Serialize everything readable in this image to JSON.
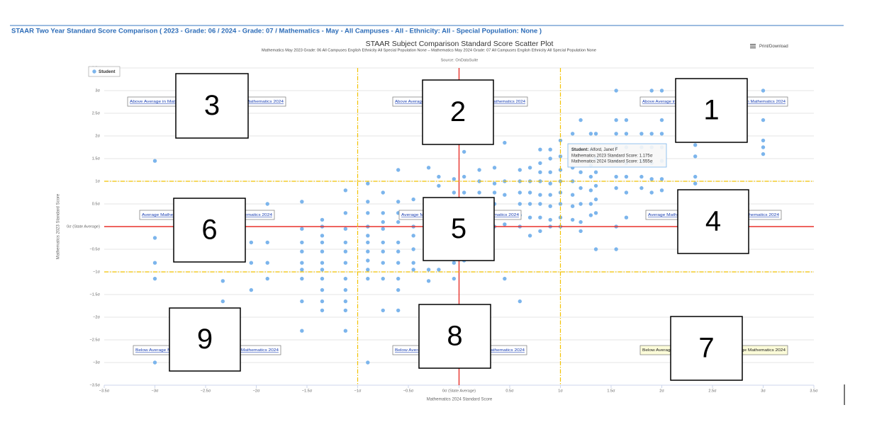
{
  "header": {
    "title": "STAAR Two Year Standard Score Comparison ( 2023 - Grade: 06 / 2024 - Grade: 07 / Mathematics - May - All Campuses - All - Ethnicity: All - Special Population: None )",
    "print_download": "Print/Download"
  },
  "chart_data": {
    "type": "scatter",
    "title": "STAAR Subject Comparison Standard Score Scatter Plot",
    "subtitle": "Mathematics May 2023 Grade: 06 All Campuses English Ethnicity All Special Population None – Mathematics May 2024 Grade: 07 All Campuses English Ethnicity All Special Population None",
    "source": "Source: OnDataSuite",
    "x_label": "Mathematics 2024 Standard Score",
    "y_label": "Mathematics 2023 Standard Score",
    "xlim": [
      -3.5,
      3.5
    ],
    "ylim": [
      -3.5,
      3.5
    ],
    "xticks": [
      {
        "value": -3.5,
        "label": "−3.5σ"
      },
      {
        "value": -3,
        "label": "−3σ"
      },
      {
        "value": -2.5,
        "label": "−2.5σ"
      },
      {
        "value": -2,
        "label": "−2σ"
      },
      {
        "value": -1.5,
        "label": "−1.5σ"
      },
      {
        "value": -1,
        "label": "−1σ"
      },
      {
        "value": -0.5,
        "label": "−0.5σ"
      },
      {
        "value": 0,
        "label": "0σ (State Average)"
      },
      {
        "value": 0.5,
        "label": "0.5σ"
      },
      {
        "value": 1,
        "label": "1σ"
      },
      {
        "value": 1.5,
        "label": "1.5σ"
      },
      {
        "value": 2,
        "label": "2σ"
      },
      {
        "value": 2.5,
        "label": "2.5σ"
      },
      {
        "value": 3,
        "label": "3σ"
      },
      {
        "value": 3.5,
        "label": "3.5σ"
      }
    ],
    "yticks": [
      {
        "value": -3.5,
        "label": "−3.5σ"
      },
      {
        "value": -3,
        "label": "−3σ"
      },
      {
        "value": -2.5,
        "label": "−2.5σ"
      },
      {
        "value": -2,
        "label": "−2σ"
      },
      {
        "value": -1.5,
        "label": "−1.5σ"
      },
      {
        "value": -1,
        "label": "−1σ"
      },
      {
        "value": -0.5,
        "label": "−0.5σ"
      },
      {
        "value": 0,
        "label": "0σ (State Average)"
      },
      {
        "value": 0.5,
        "label": "0.5σ"
      },
      {
        "value": 1,
        "label": "1σ"
      },
      {
        "value": 1.5,
        "label": "1.5σ"
      },
      {
        "value": 2,
        "label": "2σ"
      },
      {
        "value": 2.5,
        "label": "2.5σ"
      },
      {
        "value": 3,
        "label": "3σ"
      },
      {
        "value": 3.5,
        "label": "3.5σ"
      }
    ],
    "grid": true,
    "reference_lines": [
      {
        "axis": "x",
        "value": 0,
        "color": "#e8302b",
        "dashed": false
      },
      {
        "axis": "y",
        "value": 0,
        "color": "#e8302b",
        "dashed": false
      },
      {
        "axis": "x",
        "value": -1,
        "color": "#f2c200",
        "dashed": true
      },
      {
        "axis": "x",
        "value": 1,
        "color": "#f2c200",
        "dashed": true
      },
      {
        "axis": "y",
        "value": -1,
        "color": "#f2c200",
        "dashed": true
      },
      {
        "axis": "y",
        "value": 1,
        "color": "#f2c200",
        "dashed": true
      }
    ],
    "legend": "top-left",
    "series": [
      {
        "name": "Student",
        "color": "#7cb5ec",
        "x": [
          -3,
          -3,
          -3,
          -3,
          -3,
          -2.33,
          -2.33,
          -2.05,
          -2.05,
          -2.05,
          -1.89,
          -1.89,
          -1.89,
          -1.89,
          -1.55,
          -1.55,
          -1.55,
          -1.55,
          -1.55,
          -1.55,
          -1.55,
          -1.55,
          -1.55,
          -1.35,
          -1.35,
          -1.35,
          -1.35,
          -1.35,
          -1.35,
          -1.35,
          -1.35,
          -1.35,
          -1.35,
          -1.35,
          -1.12,
          -1.12,
          -1.12,
          -1.12,
          -1.12,
          -1.12,
          -1.12,
          -1.12,
          -1.12,
          -1.12,
          -1.12,
          -0.9,
          -0.9,
          -0.9,
          -0.9,
          -0.9,
          -0.9,
          -0.9,
          -0.9,
          -0.9,
          -0.9,
          -0.9,
          -0.75,
          -0.75,
          -0.75,
          -0.75,
          -0.75,
          -0.75,
          -0.75,
          -0.75,
          -0.75,
          -0.6,
          -0.6,
          -0.6,
          -0.6,
          -0.6,
          -0.6,
          -0.6,
          -0.6,
          -0.6,
          -0.6,
          -0.45,
          -0.45,
          -0.45,
          -0.45,
          -0.45,
          -0.45,
          -0.45,
          -0.3,
          -0.3,
          -0.3,
          -0.3,
          -0.3,
          -0.3,
          -0.3,
          -0.3,
          -0.2,
          -0.2,
          -0.2,
          -0.2,
          -0.2,
          -0.2,
          -0.2,
          -0.2,
          -0.05,
          -0.05,
          -0.05,
          -0.05,
          -0.05,
          -0.05,
          -0.05,
          -0.05,
          0.05,
          0.05,
          0.05,
          0.05,
          0.05,
          0.05,
          0.05,
          0.05,
          0.2,
          0.2,
          0.2,
          0.2,
          0.2,
          0.2,
          0.2,
          0.35,
          0.35,
          0.35,
          0.35,
          0.35,
          0.35,
          0.45,
          0.45,
          0.45,
          0.45,
          0.45,
          0.45,
          0.6,
          0.6,
          0.6,
          0.6,
          0.6,
          0.6,
          0.6,
          0.7,
          0.7,
          0.7,
          0.7,
          0.7,
          0.7,
          0.8,
          0.8,
          0.8,
          0.8,
          0.8,
          0.8,
          0.8,
          0.8,
          0.9,
          0.9,
          0.9,
          0.9,
          0.9,
          0.9,
          0.9,
          0.9,
          1,
          1,
          1,
          1,
          1,
          1,
          1,
          1,
          1.12,
          1.12,
          1.12,
          1.12,
          1.12,
          1.12,
          1.12,
          1.2,
          1.2,
          1.2,
          1.2,
          1.2,
          1.2,
          1.2,
          1.3,
          1.3,
          1.3,
          1.3,
          1.3,
          1.3,
          1.3,
          1.35,
          1.35,
          1.35,
          1.35,
          1.35,
          1.35,
          1.35,
          1.55,
          1.55,
          1.55,
          1.55,
          1.55,
          1.55,
          1.55,
          1.55,
          1.55,
          1.65,
          1.65,
          1.65,
          1.65,
          1.65,
          1.65,
          1.65,
          1.8,
          1.8,
          1.8,
          1.8,
          1.8,
          1.9,
          1.9,
          1.9,
          1.9,
          1.9,
          1.9,
          2,
          2,
          2,
          2,
          2,
          2,
          2,
          2.33,
          2.33,
          2.33,
          2.33,
          3,
          3,
          3,
          3,
          3
        ],
        "values": [
          1.45,
          -0.25,
          -0.8,
          -1.15,
          -3,
          -1.2,
          -1.65,
          -0.35,
          -0.8,
          -1.4,
          0.5,
          -0.35,
          -0.8,
          -1.15,
          0.55,
          -0.05,
          -0.35,
          -0.55,
          -0.8,
          -0.95,
          -1.15,
          -1.65,
          -2.3,
          0.15,
          0,
          -0.2,
          -0.35,
          -0.55,
          -0.8,
          -0.95,
          -1.15,
          -1.4,
          -1.65,
          -1.85,
          0.8,
          0.3,
          -0.05,
          -0.35,
          -0.55,
          -0.8,
          -1.15,
          -1.4,
          -1.65,
          -1.85,
          -2.3,
          0.95,
          0.55,
          0.3,
          0,
          -0.2,
          -0.35,
          -0.55,
          -0.75,
          -0.95,
          -1.15,
          -3,
          0.75,
          0.3,
          0.1,
          -0.05,
          -0.35,
          -0.55,
          -0.8,
          -1.15,
          -1.85,
          1.25,
          0.55,
          0.3,
          0.1,
          -0.35,
          -0.55,
          -0.8,
          -1.15,
          -1.4,
          -1.85,
          0.6,
          0.2,
          0,
          -0.2,
          -0.5,
          -0.8,
          -0.95,
          1.3,
          0.45,
          0.1,
          -0.2,
          -0.55,
          -0.95,
          -1.2,
          -1.85,
          1.1,
          0.9,
          0.6,
          0.3,
          0,
          -0.3,
          -0.6,
          -0.95,
          1.05,
          0.75,
          0.6,
          0.3,
          0,
          -0.4,
          -0.8,
          -1.15,
          1.65,
          1.1,
          0.75,
          0.55,
          0.3,
          0.05,
          -0.35,
          -0.75,
          1.25,
          1,
          0.75,
          0.5,
          0.3,
          0,
          -0.3,
          1.3,
          0.95,
          0.75,
          0.5,
          0.3,
          0,
          1.85,
          1,
          0.7,
          0.3,
          0.05,
          -1.15,
          1.25,
          1,
          0.75,
          0.5,
          0.25,
          0,
          -1.65,
          1.3,
          1,
          0.75,
          0.5,
          0.2,
          -0.2,
          1.7,
          1.4,
          1.2,
          1,
          0.7,
          0.5,
          0.2,
          -0.1,
          1.7,
          1.5,
          1.2,
          0.95,
          0.7,
          0.45,
          0.15,
          0,
          1.9,
          1.55,
          1.25,
          1,
          0.75,
          0.5,
          0.2,
          0,
          2.05,
          1.7,
          1.3,
          1,
          0.7,
          0.45,
          0.15,
          2.35,
          1.7,
          1.2,
          0.85,
          0.5,
          0.1,
          -0.1,
          2.05,
          1.7,
          1.35,
          1.1,
          0.8,
          0.5,
          0.25,
          2.05,
          1.5,
          1.2,
          0.9,
          0.6,
          0.3,
          -0.5,
          3,
          2.35,
          2.05,
          1.75,
          1.45,
          1.1,
          0.85,
          0,
          -0.5,
          2.35,
          2.05,
          1.75,
          1.4,
          1.1,
          0.75,
          0.2,
          2.05,
          1.75,
          1.45,
          1.1,
          0.85,
          3,
          2.05,
          1.75,
          1.4,
          1.05,
          0.75,
          3,
          2.35,
          2.05,
          1.75,
          1.45,
          1.05,
          0.8,
          1.8,
          1.55,
          1.1,
          0.95,
          3,
          2.35,
          1.9,
          1.75,
          1.6
        ]
      }
    ],
    "region_labels": [
      "Above Average in Mathematics 2023 / Below Average in Mathematics 2024",
      "Above Average in Mathematics 2023 / Average in Mathematics 2024",
      "Above Average in Mathematics 2023 / Above Average in Mathematics 2024",
      "Average Mathematics 2023 / Below Average Mathematics 2024",
      "Average Mathematics 2023 / Average Mathematics 2024",
      "Average Mathematics 2023 / Above Average Mathematics 2024",
      "Below Average Mathematics 2023 / Below Average Mathematics 2024",
      "Below Average Mathematics 2023 / Average Mathematics 2024",
      "Below Average Mathematics 2023 / Above Average Mathematics 2024"
    ],
    "tooltip": {
      "label": "Student:",
      "name": "Alford, Janet F",
      "lines": [
        "Mathematics 2023 Standard Score: 1.175σ",
        "Mathematics 2024 Standard Score: 1.555σ"
      ]
    }
  },
  "overlay_labels": [
    "3",
    "2",
    "1",
    "6",
    "5",
    "4",
    "9",
    "8",
    "7"
  ]
}
